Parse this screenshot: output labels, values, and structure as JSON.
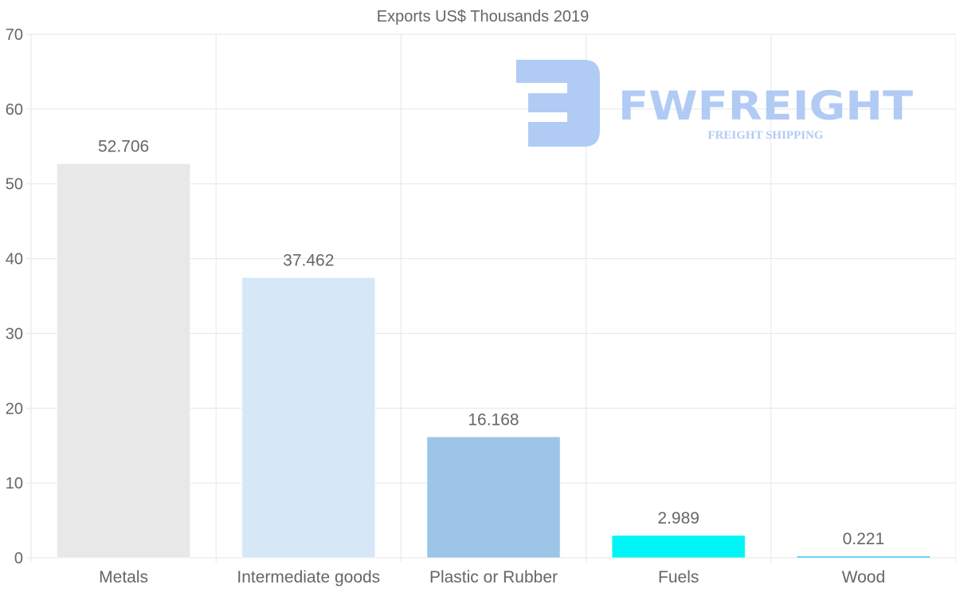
{
  "chart_data": {
    "type": "bar",
    "title": "Exports US$ Thousands 2019",
    "categories": [
      "Metals",
      "Intermediate goods",
      "Plastic or Rubber",
      "Fuels",
      "Wood"
    ],
    "values": [
      52.706,
      37.462,
      16.168,
      2.989,
      0.221
    ],
    "value_labels": [
      "52.706",
      "37.462",
      "16.168",
      "2.989",
      "0.221"
    ],
    "colors": [
      "#e8e8e8",
      "#d6e7f8",
      "#9cc5e8",
      "#00f6f6",
      "#33c3f0"
    ],
    "xlabel": "",
    "ylabel": "",
    "ylim": [
      0,
      70
    ],
    "yticks": [
      0,
      10,
      20,
      30,
      40,
      50,
      60,
      70
    ],
    "grid": true,
    "legend": "none"
  },
  "watermark": {
    "brand": "FWFREIGHT",
    "tagline": "FREIGHT SHIPPING",
    "color": "#a9c6f3"
  }
}
